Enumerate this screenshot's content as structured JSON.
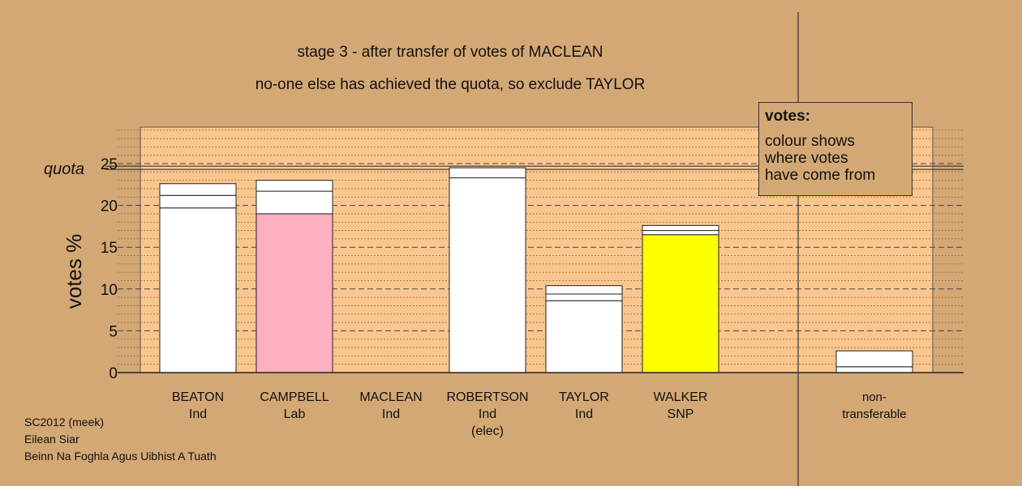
{
  "titles": {
    "line1": "stage 3 - after transfer of votes of MACLEAN",
    "line2": "no-one else has achieved the quota, so exclude TAYLOR"
  },
  "legend": {
    "heading": "votes:",
    "lines": [
      "colour shows",
      "where votes",
      "have come from"
    ]
  },
  "footer": [
    "SC2012 (meek)",
    "Eilean Siar",
    "Beinn Na Foghla Agus Uibhist A Tuath"
  ],
  "candidates": [
    {
      "name": "BEATON",
      "party": "Ind",
      "extra": ""
    },
    {
      "name": "CAMPBELL",
      "party": "Lab",
      "extra": ""
    },
    {
      "name": "MACLEAN",
      "party": "Ind",
      "extra": ""
    },
    {
      "name": "ROBERTSON",
      "party": "Ind",
      "extra": "(elec)"
    },
    {
      "name": "TAYLOR",
      "party": "Ind",
      "extra": ""
    },
    {
      "name": "WALKER",
      "party": "SNP",
      "extra": ""
    }
  ],
  "nontransferable": {
    "line1": "non-",
    "line2": "transferable"
  },
  "colors": {
    "background": "#d4a875",
    "plot_area": "#fbc68e",
    "Ind": "#ffffff",
    "Lab": "#ffb0c0",
    "SNP": "#ffff00"
  },
  "chart_data": {
    "type": "bar",
    "stacked": true,
    "ylabel": "votes %",
    "ylim": [
      0,
      29.5
    ],
    "yticks": [
      0,
      5,
      10,
      15,
      20,
      25
    ],
    "quota": 24.5,
    "quota_label": "quota",
    "minor_grid_step": 1,
    "categories": [
      "BEATON",
      "CAMPBELL",
      "MACLEAN",
      "ROBERTSON",
      "TAYLOR",
      "WALKER",
      "non-transferable"
    ],
    "stacks": [
      [
        {
          "value": 19.7,
          "party": "Ind"
        },
        {
          "value": 1.5,
          "party": "Ind"
        },
        {
          "value": 1.4,
          "party": "Ind"
        }
      ],
      [
        {
          "value": 19.0,
          "party": "Lab"
        },
        {
          "value": 2.7,
          "party": "Ind"
        },
        {
          "value": 1.3,
          "party": "Ind"
        }
      ],
      [],
      [
        {
          "value": 23.3,
          "party": "Ind"
        },
        {
          "value": 1.2,
          "party": "Ind"
        }
      ],
      [
        {
          "value": 8.6,
          "party": "Ind"
        },
        {
          "value": 0.8,
          "party": "Ind"
        },
        {
          "value": 1.0,
          "party": "Ind"
        }
      ],
      [
        {
          "value": 16.5,
          "party": "SNP"
        },
        {
          "value": 0.5,
          "party": "Ind"
        },
        {
          "value": 0.6,
          "party": "Ind"
        }
      ],
      [
        {
          "value": 0.7,
          "party": "Ind"
        },
        {
          "value": 1.9,
          "party": "Ind"
        }
      ]
    ]
  }
}
